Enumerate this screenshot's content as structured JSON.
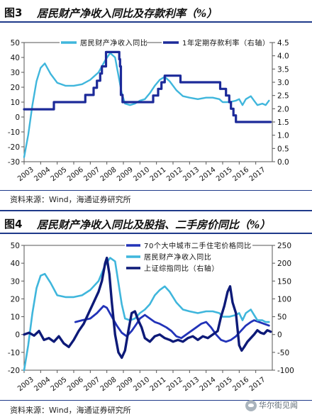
{
  "chart_data": [
    {
      "type": "line",
      "figure_no": "图3",
      "title": "居民财产净收入同比及存款利率（%）",
      "x_ticks": [
        "2003",
        "2004",
        "2005",
        "2006",
        "2007",
        "2008",
        "2009",
        "2010",
        "2011",
        "2012",
        "2013",
        "2014",
        "2015",
        "2016",
        "2017"
      ],
      "xlim": [
        2003.0,
        2018.0
      ],
      "y_left": {
        "lim": [
          -30,
          50
        ],
        "ticks": [
          -30,
          -20,
          -10,
          0,
          10,
          20,
          30,
          40,
          50
        ]
      },
      "y_right": {
        "lim": [
          0.0,
          4.5
        ],
        "ticks": [
          "0.0",
          "0.5",
          "1.0",
          "1.5",
          "2.0",
          "2.5",
          "3.0",
          "3.5",
          "4.0",
          "4.5"
        ]
      },
      "legend_position": "top",
      "series": [
        {
          "name": "居民财产净收入同比",
          "axis": "left",
          "color": "#3fb6dc",
          "points": [
            [
              2003.0,
              -27
            ],
            [
              2003.25,
              -12
            ],
            [
              2003.5,
              8
            ],
            [
              2003.75,
              24
            ],
            [
              2004.0,
              33
            ],
            [
              2004.25,
              36
            ],
            [
              2004.6,
              29
            ],
            [
              2005.0,
              23
            ],
            [
              2005.5,
              21
            ],
            [
              2006.0,
              21
            ],
            [
              2006.5,
              22
            ],
            [
              2007.0,
              25
            ],
            [
              2007.5,
              30
            ],
            [
              2007.9,
              38
            ],
            [
              2008.2,
              43
            ],
            [
              2008.5,
              40
            ],
            [
              2008.7,
              28
            ],
            [
              2008.9,
              16
            ],
            [
              2009.1,
              9
            ],
            [
              2009.4,
              8
            ],
            [
              2009.7,
              9
            ],
            [
              2010.0,
              11
            ],
            [
              2010.3,
              12
            ],
            [
              2010.6,
              16
            ],
            [
              2010.9,
              21
            ],
            [
              2011.2,
              25
            ],
            [
              2011.5,
              27
            ],
            [
              2011.8,
              24
            ],
            [
              2012.2,
              18
            ],
            [
              2012.6,
              14
            ],
            [
              2013.0,
              13
            ],
            [
              2013.5,
              12
            ],
            [
              2014.0,
              13
            ],
            [
              2014.4,
              13
            ],
            [
              2014.8,
              12
            ],
            [
              2015.0,
              10
            ],
            [
              2015.4,
              10
            ],
            [
              2015.8,
              11
            ],
            [
              2016.0,
              12
            ],
            [
              2016.2,
              8
            ],
            [
              2016.4,
              12
            ],
            [
              2016.7,
              14
            ],
            [
              2016.9,
              11
            ],
            [
              2017.1,
              8
            ],
            [
              2017.4,
              9
            ],
            [
              2017.6,
              8
            ],
            [
              2017.8,
              11
            ]
          ]
        },
        {
          "name": "1年定期存款利率（右轴）",
          "axis": "right",
          "color": "#1c2a99",
          "points": [
            [
              2003.0,
              1.98
            ],
            [
              2004.8,
              1.98
            ],
            [
              2004.8,
              2.25
            ],
            [
              2006.7,
              2.25
            ],
            [
              2006.7,
              2.52
            ],
            [
              2007.2,
              2.52
            ],
            [
              2007.2,
              2.79
            ],
            [
              2007.4,
              2.79
            ],
            [
              2007.4,
              3.06
            ],
            [
              2007.6,
              3.06
            ],
            [
              2007.6,
              3.33
            ],
            [
              2007.7,
              3.33
            ],
            [
              2007.7,
              3.6
            ],
            [
              2007.95,
              3.6
            ],
            [
              2007.95,
              4.14
            ],
            [
              2008.75,
              4.14
            ],
            [
              2008.75,
              3.87
            ],
            [
              2008.8,
              3.87
            ],
            [
              2008.8,
              3.6
            ],
            [
              2008.85,
              3.6
            ],
            [
              2008.85,
              2.52
            ],
            [
              2008.95,
              2.52
            ],
            [
              2008.95,
              2.25
            ],
            [
              2010.8,
              2.25
            ],
            [
              2010.8,
              2.5
            ],
            [
              2011.1,
              2.5
            ],
            [
              2011.1,
              2.75
            ],
            [
              2011.3,
              2.75
            ],
            [
              2011.3,
              3.0
            ],
            [
              2011.5,
              3.0
            ],
            [
              2011.5,
              3.25
            ],
            [
              2012.45,
              3.25
            ],
            [
              2012.45,
              3.0
            ],
            [
              2012.55,
              3.0
            ],
            [
              2012.55,
              3.0
            ],
            [
              2014.85,
              3.0
            ],
            [
              2014.85,
              2.75
            ],
            [
              2015.2,
              2.75
            ],
            [
              2015.2,
              2.5
            ],
            [
              2015.4,
              2.5
            ],
            [
              2015.4,
              2.25
            ],
            [
              2015.5,
              2.25
            ],
            [
              2015.5,
              2.0
            ],
            [
              2015.65,
              2.0
            ],
            [
              2015.65,
              1.75
            ],
            [
              2015.8,
              1.75
            ],
            [
              2015.8,
              1.5
            ],
            [
              2017.9,
              1.5
            ]
          ]
        }
      ],
      "source": "资料来源：Wind，海通证券研究所"
    },
    {
      "type": "line",
      "figure_no": "图4",
      "title": "居民财产净收入同比及股指、二手房价同比（%）",
      "x_ticks": [
        "2003",
        "2004",
        "2005",
        "2006",
        "2007",
        "2008",
        "2009",
        "2010",
        "2011",
        "2012",
        "2013",
        "2014",
        "2015",
        "2016",
        "2017"
      ],
      "xlim": [
        2003.0,
        2018.0
      ],
      "y_left": {
        "lim": [
          -20,
          50
        ],
        "ticks": [
          -20,
          -10,
          0,
          10,
          20,
          30,
          40,
          50
        ]
      },
      "y_right": {
        "lim": [
          -100,
          250
        ],
        "ticks": [
          -100,
          -50,
          0,
          50,
          100,
          150,
          200,
          250
        ]
      },
      "legend_position": "top",
      "series": [
        {
          "name": "70个大中城市二手住宅价格同比",
          "axis": "left",
          "color": "#2233b8",
          "points": [
            [
              2006.1,
              7
            ],
            [
              2006.5,
              8
            ],
            [
              2007.0,
              9
            ],
            [
              2007.4,
              12
            ],
            [
              2007.8,
              16
            ],
            [
              2008.0,
              15
            ],
            [
              2008.3,
              10
            ],
            [
              2008.6,
              5
            ],
            [
              2008.9,
              1
            ],
            [
              2009.2,
              -1
            ],
            [
              2009.5,
              2
            ],
            [
              2009.8,
              6
            ],
            [
              2010.0,
              9
            ],
            [
              2010.3,
              11
            ],
            [
              2010.6,
              9
            ],
            [
              2010.9,
              7
            ],
            [
              2011.2,
              6
            ],
            [
              2011.6,
              4
            ],
            [
              2011.9,
              2
            ],
            [
              2012.2,
              -1
            ],
            [
              2012.5,
              -2
            ],
            [
              2012.8,
              0
            ],
            [
              2013.1,
              2
            ],
            [
              2013.4,
              4
            ],
            [
              2013.7,
              6
            ],
            [
              2014.0,
              7
            ],
            [
              2014.3,
              4
            ],
            [
              2014.6,
              0
            ],
            [
              2014.9,
              -3
            ],
            [
              2015.2,
              -4
            ],
            [
              2015.5,
              -3
            ],
            [
              2015.8,
              -1
            ],
            [
              2016.1,
              2
            ],
            [
              2016.4,
              5
            ],
            [
              2016.7,
              7
            ],
            [
              2016.9,
              8
            ],
            [
              2017.2,
              7
            ],
            [
              2017.5,
              6
            ],
            [
              2017.8,
              5
            ]
          ]
        },
        {
          "name": "居民财产净收入同比",
          "axis": "left",
          "color": "#3fb6dc",
          "points": [
            [
              2003.0,
              -20
            ],
            [
              2003.25,
              -6
            ],
            [
              2003.5,
              12
            ],
            [
              2003.75,
              26
            ],
            [
              2004.0,
              33
            ],
            [
              2004.25,
              34
            ],
            [
              2004.6,
              29
            ],
            [
              2005.0,
              22
            ],
            [
              2005.5,
              21
            ],
            [
              2006.0,
              21
            ],
            [
              2006.5,
              22
            ],
            [
              2007.0,
              25
            ],
            [
              2007.5,
              30
            ],
            [
              2007.9,
              39
            ],
            [
              2008.2,
              43
            ],
            [
              2008.5,
              41
            ],
            [
              2008.7,
              29
            ],
            [
              2008.9,
              17
            ],
            [
              2009.1,
              9
            ],
            [
              2009.4,
              8
            ],
            [
              2009.7,
              9
            ],
            [
              2010.0,
              12
            ],
            [
              2010.3,
              14
            ],
            [
              2010.6,
              17
            ],
            [
              2010.9,
              22
            ],
            [
              2011.2,
              25
            ],
            [
              2011.5,
              27
            ],
            [
              2011.8,
              24
            ],
            [
              2012.2,
              18
            ],
            [
              2012.6,
              14
            ],
            [
              2013.0,
              13
            ],
            [
              2013.5,
              12
            ],
            [
              2014.0,
              13
            ],
            [
              2014.4,
              13
            ],
            [
              2014.8,
              12
            ],
            [
              2015.0,
              10
            ],
            [
              2015.4,
              10
            ],
            [
              2015.8,
              11
            ],
            [
              2016.0,
              12
            ],
            [
              2016.2,
              8
            ],
            [
              2016.4,
              12
            ],
            [
              2016.7,
              14
            ],
            [
              2016.9,
              11
            ],
            [
              2017.1,
              8
            ],
            [
              2017.4,
              8
            ],
            [
              2017.6,
              7
            ],
            [
              2017.8,
              7
            ]
          ]
        },
        {
          "name": "上证综指同比（右轴）",
          "axis": "right",
          "color": "#0d1a78",
          "points": [
            [
              2003.0,
              0
            ],
            [
              2003.3,
              5
            ],
            [
              2003.6,
              -3
            ],
            [
              2003.9,
              10
            ],
            [
              2004.2,
              -15
            ],
            [
              2004.5,
              -10
            ],
            [
              2004.8,
              -20
            ],
            [
              2005.1,
              -5
            ],
            [
              2005.4,
              -25
            ],
            [
              2005.7,
              -35
            ],
            [
              2006.0,
              -15
            ],
            [
              2006.3,
              10
            ],
            [
              2006.6,
              30
            ],
            [
              2006.9,
              60
            ],
            [
              2007.2,
              90
            ],
            [
              2007.5,
              120
            ],
            [
              2007.7,
              150
            ],
            [
              2007.9,
              200
            ],
            [
              2008.0,
              215
            ],
            [
              2008.15,
              170
            ],
            [
              2008.3,
              90
            ],
            [
              2008.5,
              0
            ],
            [
              2008.7,
              -50
            ],
            [
              2008.9,
              -65
            ],
            [
              2009.1,
              -45
            ],
            [
              2009.3,
              10
            ],
            [
              2009.5,
              60
            ],
            [
              2009.7,
              65
            ],
            [
              2009.9,
              40
            ],
            [
              2010.1,
              20
            ],
            [
              2010.3,
              -10
            ],
            [
              2010.6,
              -20
            ],
            [
              2010.9,
              -5
            ],
            [
              2011.2,
              0
            ],
            [
              2011.5,
              -10
            ],
            [
              2011.8,
              -15
            ],
            [
              2012.0,
              -20
            ],
            [
              2012.3,
              -15
            ],
            [
              2012.6,
              -20
            ],
            [
              2012.9,
              -10
            ],
            [
              2013.2,
              -5
            ],
            [
              2013.5,
              -15
            ],
            [
              2013.8,
              -5
            ],
            [
              2014.1,
              -10
            ],
            [
              2014.4,
              0
            ],
            [
              2014.7,
              10
            ],
            [
              2014.9,
              50
            ],
            [
              2015.1,
              80
            ],
            [
              2015.3,
              120
            ],
            [
              2015.45,
              135
            ],
            [
              2015.6,
              90
            ],
            [
              2015.8,
              60
            ],
            [
              2016.0,
              -30
            ],
            [
              2016.15,
              -45
            ],
            [
              2016.3,
              -35
            ],
            [
              2016.5,
              -20
            ],
            [
              2016.7,
              -10
            ],
            [
              2016.9,
              0
            ],
            [
              2017.1,
              12
            ],
            [
              2017.3,
              5
            ],
            [
              2017.5,
              2
            ],
            [
              2017.7,
              12
            ],
            [
              2017.9,
              8
            ]
          ]
        }
      ],
      "source": "资料来源：Wind，海通证券研究所"
    }
  ],
  "watermark": {
    "text": "华尔街见闻"
  }
}
